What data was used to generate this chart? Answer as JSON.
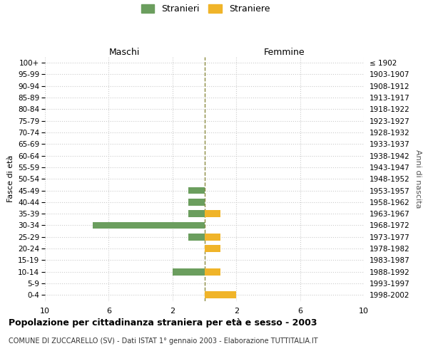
{
  "age_groups": [
    "100+",
    "95-99",
    "90-94",
    "85-89",
    "80-84",
    "75-79",
    "70-74",
    "65-69",
    "60-64",
    "55-59",
    "50-54",
    "45-49",
    "40-44",
    "35-39",
    "30-34",
    "25-29",
    "20-24",
    "15-19",
    "10-14",
    "5-9",
    "0-4"
  ],
  "birth_years": [
    "≤ 1902",
    "1903-1907",
    "1908-1912",
    "1913-1917",
    "1918-1922",
    "1923-1927",
    "1928-1932",
    "1933-1937",
    "1938-1942",
    "1943-1947",
    "1948-1952",
    "1953-1957",
    "1958-1962",
    "1963-1967",
    "1968-1972",
    "1973-1977",
    "1978-1982",
    "1983-1987",
    "1988-1992",
    "1993-1997",
    "1998-2002"
  ],
  "maschi": [
    0,
    0,
    0,
    0,
    0,
    0,
    0,
    0,
    0,
    0,
    0,
    1,
    1,
    1,
    7,
    1,
    0,
    0,
    2,
    0,
    0
  ],
  "femmine": [
    0,
    0,
    0,
    0,
    0,
    0,
    0,
    0,
    0,
    0,
    0,
    0,
    0,
    1,
    0,
    1,
    1,
    0,
    1,
    0,
    2
  ],
  "color_maschi": "#6b9e5e",
  "color_femmine": "#f0b429",
  "title": "Popolazione per cittadinanza straniera per età e sesso - 2003",
  "subtitle": "COMUNE DI ZUCCARELLO (SV) - Dati ISTAT 1° gennaio 2003 - Elaborazione TUTTITALIA.IT",
  "ylabel_left": "Fasce di età",
  "ylabel_right": "Anni di nascita",
  "header_left": "Maschi",
  "header_right": "Femmine",
  "legend_maschi": "Stranieri",
  "legend_femmine": "Straniere",
  "xmax": 10,
  "bg_color": "#ffffff",
  "grid_color": "#cccccc",
  "dashed_line_color": "#8a8a40"
}
